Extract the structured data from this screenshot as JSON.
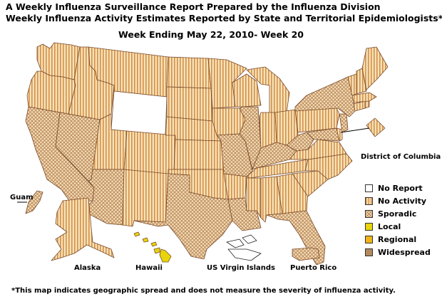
{
  "title_line1": "A Weekly Influenza Surveillance Report Prepared by the Influenza Division",
  "title_line2": "Weekly Influenza Activity Estimates Reported by State and Territorial Epidemiologists*",
  "week_line": "Week Ending May 22, 2010- Week 20",
  "legend": [
    {
      "key": "no-report",
      "label": "No Report",
      "color": "#ffffff",
      "pattern": "none"
    },
    {
      "key": "no-activity",
      "label": "No Activity",
      "color": "#f6e2b8",
      "pattern": "stripes"
    },
    {
      "key": "sporadic",
      "label": "Sporadic",
      "color": "#f3ddb2",
      "pattern": "cross"
    },
    {
      "key": "local",
      "label": "Local",
      "color": "#e8d40a",
      "pattern": "none"
    },
    {
      "key": "regional",
      "label": "Regional",
      "color": "#f0b41a",
      "pattern": "none"
    },
    {
      "key": "widespread",
      "label": "Widespread",
      "color": "#b08a5e",
      "pattern": "none"
    }
  ],
  "inset_labels": {
    "guam": "Guam",
    "alaska": "Alaska",
    "hawaii": "Hawaii",
    "usvi": "US Virgin Islands",
    "puerto_rico": "Puerto Rico",
    "dc": "District of Columbia"
  },
  "footnote": "*This map indicates geographic spread and does not measure the severity of influenza activity."
}
